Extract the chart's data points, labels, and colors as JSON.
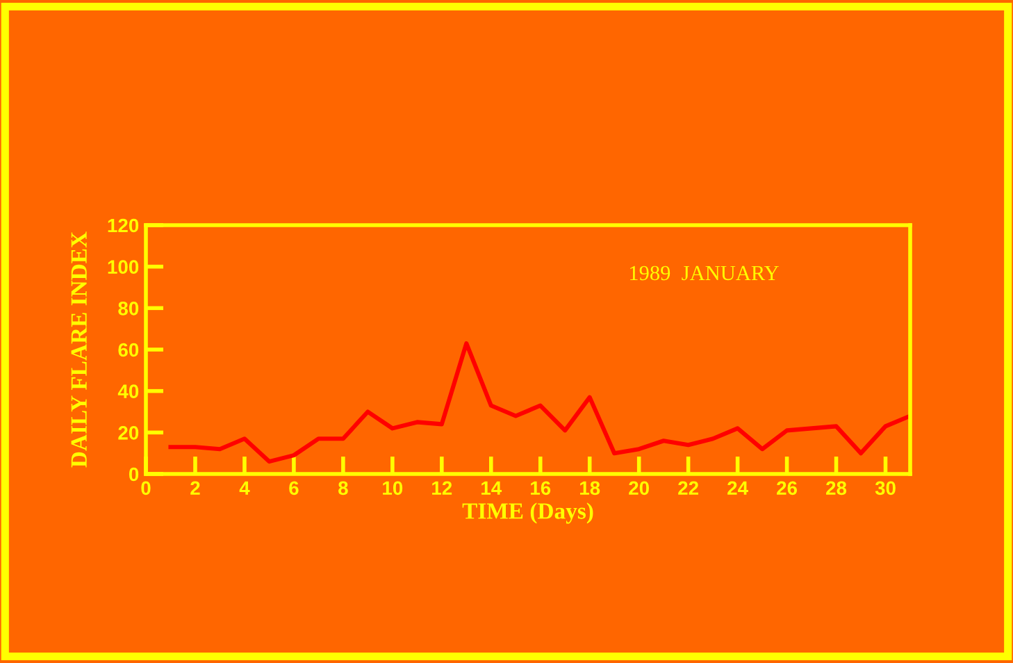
{
  "chart_data": {
    "type": "line",
    "xlabel": "TIME (Days)",
    "ylabel": "DAILY FLARE INDEX",
    "annotations": [
      "1989  JANUARY"
    ],
    "x": [
      1,
      2,
      3,
      4,
      5,
      6,
      7,
      8,
      9,
      10,
      11,
      12,
      13,
      14,
      15,
      16,
      17,
      18,
      19,
      20,
      21,
      22,
      23,
      24,
      25,
      26,
      27,
      28,
      29,
      30,
      31
    ],
    "series": [
      {
        "color": "#ff0000",
        "values": [
          13,
          13,
          12,
          17,
          6,
          9,
          17,
          17,
          30,
          22,
          25,
          24,
          63,
          33,
          28,
          33,
          21,
          37,
          10,
          12,
          16,
          14,
          17,
          22,
          12,
          21,
          22,
          23,
          10,
          23,
          28
        ]
      }
    ],
    "xlim": [
      0,
      31
    ],
    "xticks": [
      0,
      2,
      4,
      6,
      8,
      10,
      12,
      14,
      16,
      18,
      20,
      22,
      24,
      26,
      28,
      30
    ],
    "ylim": [
      0,
      120
    ],
    "yticks": [
      0,
      20,
      40,
      60,
      80,
      100,
      120
    ],
    "grid": false,
    "legend": false,
    "marker": "none",
    "line_style": "solid"
  }
}
